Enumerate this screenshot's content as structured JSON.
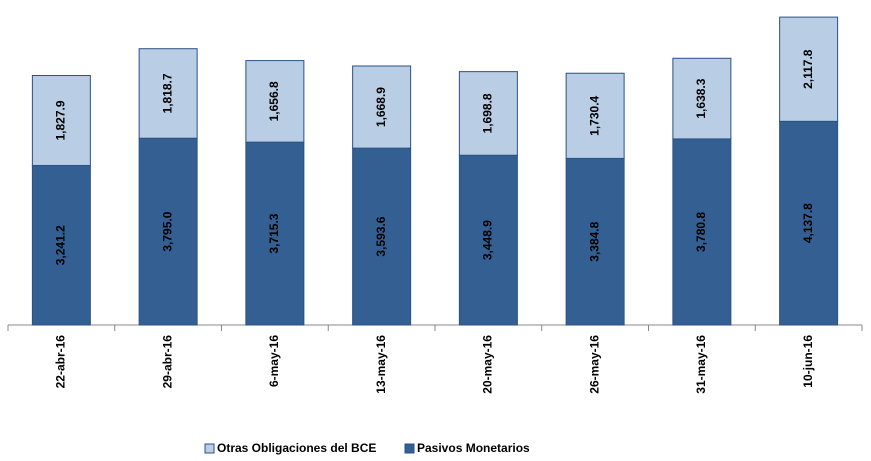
{
  "chart_data": {
    "type": "stacked_bar",
    "categories": [
      "22-abr-16",
      "29-abr-16",
      "6-may-16",
      "13-may-16",
      "20-may-16",
      "26-may-16",
      "31-may-16",
      "10-jun-16"
    ],
    "series": [
      {
        "name": "Pasivos Monetarios",
        "color": "#345f92",
        "values": [
          3241.2,
          3795.0,
          3715.3,
          3593.6,
          3448.9,
          3384.8,
          3780.8,
          4137.8
        ],
        "value_labels": [
          "3,241.2",
          "3,795.0",
          "3,715.3",
          "3,593.6",
          "3,448.9",
          "3,384.8",
          "3,780.8",
          "4,137.8"
        ]
      },
      {
        "name": "Otras Obligaciones del BCE",
        "color": "#b9cde5",
        "values": [
          1827.9,
          1818.7,
          1656.8,
          1668.9,
          1698.8,
          1730.4,
          1638.3,
          2117.8
        ],
        "value_labels": [
          "1,827.9",
          "1,818.7",
          "1,656.8",
          "1,668.9",
          "1,698.8",
          "1,730.4",
          "1,638.3",
          "2,117.8"
        ]
      }
    ],
    "ylim": [
      0,
      6400
    ]
  }
}
